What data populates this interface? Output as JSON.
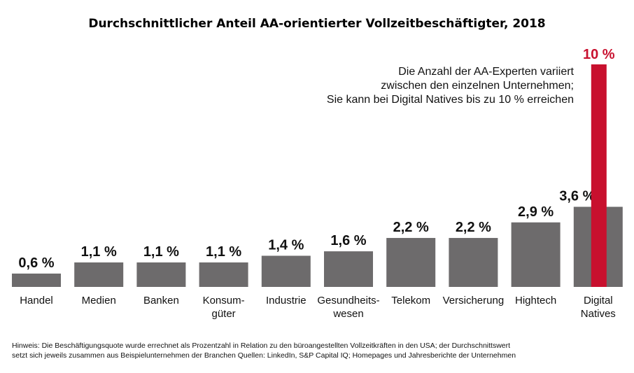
{
  "chart_data": {
    "type": "bar",
    "title": "Durchschnittlicher Anteil AA-orientierter Vollzeitbeschäftigter, 2018",
    "categories": [
      [
        "Handel"
      ],
      [
        "Medien"
      ],
      [
        "Banken"
      ],
      [
        "Konsum-",
        "güter"
      ],
      [
        "Industrie"
      ],
      [
        "Gesundheits-",
        "wesen"
      ],
      [
        "Telekom"
      ],
      [
        "Versicherung"
      ],
      [
        "Hightech"
      ],
      [
        "Digital",
        "Natives"
      ]
    ],
    "values": [
      0.6,
      1.1,
      1.1,
      1.1,
      1.4,
      1.6,
      2.2,
      2.2,
      2.9,
      3.6
    ],
    "value_labels": [
      "0,6 %",
      "1,1 %",
      "1,1 %",
      "1,1 %",
      "1,4 %",
      "1,6 %",
      "2,2 %",
      "2,2 %",
      "2,9 %",
      "3,6 %"
    ],
    "highlight": {
      "category": "Digital Natives",
      "value": 10,
      "label": "10 %",
      "color": "#c8102e"
    },
    "bar_color": "#6d6b6c",
    "annotation": [
      "Die Anzahl der AA-Experten variiert",
      "zwischen den einzelnen Unternehmen;",
      "Sie kann bei Digital Natives bis zu 10 % erreichen"
    ],
    "xlabel": "",
    "ylabel": "",
    "ylim": [
      0,
      10
    ],
    "grid": false
  },
  "footnote": [
    "Hinweis: Die Beschäftigungsquote wurde errechnet als Prozentzahl in Relation zu den büroangestellten Vollzeitkräften in den USA; der Durchschnittswert",
    "setzt sich jeweils zusammen aus Beispielunternehmen der Branchen Quellen: LinkedIn, S&P Capital IQ; Homepages und Jahresberichte der Unternehmen"
  ]
}
